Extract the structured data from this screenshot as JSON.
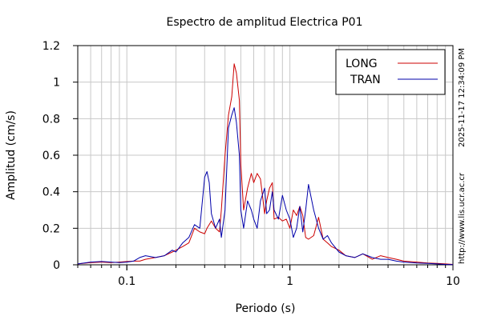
{
  "chart_data": {
    "type": "line",
    "title": "Espectro de amplitud Electrica P01",
    "xlabel": "Periodo (s)",
    "ylabel": "Amplitud (cm/s)",
    "xscale": "log",
    "xlim": [
      0.05,
      10
    ],
    "ylim": [
      0,
      1.2
    ],
    "grid": true,
    "legend_position": "top-right",
    "x_ticks": [
      {
        "value": 0.1,
        "label": "0.1"
      },
      {
        "value": 1,
        "label": "1"
      },
      {
        "value": 10,
        "label": "10"
      }
    ],
    "y_ticks": [
      {
        "value": 0,
        "label": "0"
      },
      {
        "value": 0.2,
        "label": "0.2"
      },
      {
        "value": 0.4,
        "label": "0.4"
      },
      {
        "value": 0.6,
        "label": "0.6"
      },
      {
        "value": 0.8,
        "label": "0.8"
      },
      {
        "value": 1.0,
        "label": "1"
      },
      {
        "value": 1.2,
        "label": "1.2"
      }
    ],
    "series": [
      {
        "name": "LONG",
        "color": "#cc0000",
        "x": [
          0.05,
          0.06,
          0.07,
          0.08,
          0.09,
          0.1,
          0.11,
          0.12,
          0.13,
          0.15,
          0.17,
          0.19,
          0.2,
          0.22,
          0.24,
          0.26,
          0.28,
          0.3,
          0.31,
          0.33,
          0.35,
          0.37,
          0.38,
          0.4,
          0.42,
          0.44,
          0.455,
          0.47,
          0.49,
          0.5,
          0.52,
          0.55,
          0.58,
          0.6,
          0.63,
          0.66,
          0.7,
          0.72,
          0.75,
          0.78,
          0.8,
          0.85,
          0.9,
          0.95,
          1.0,
          1.05,
          1.1,
          1.15,
          1.2,
          1.25,
          1.3,
          1.4,
          1.5,
          1.6,
          1.7,
          1.8,
          2.0,
          2.2,
          2.5,
          2.8,
          3.2,
          3.6,
          4.0,
          4.5,
          5.0,
          6.0,
          7.0,
          8.0,
          9.0,
          10.0
        ],
        "y": [
          0.005,
          0.012,
          0.015,
          0.012,
          0.015,
          0.018,
          0.02,
          0.02,
          0.03,
          0.04,
          0.05,
          0.07,
          0.08,
          0.1,
          0.12,
          0.2,
          0.18,
          0.17,
          0.2,
          0.24,
          0.2,
          0.18,
          0.3,
          0.6,
          0.82,
          0.92,
          1.1,
          1.05,
          0.9,
          0.55,
          0.3,
          0.42,
          0.5,
          0.45,
          0.5,
          0.47,
          0.28,
          0.35,
          0.42,
          0.45,
          0.25,
          0.26,
          0.24,
          0.25,
          0.2,
          0.3,
          0.27,
          0.32,
          0.27,
          0.15,
          0.14,
          0.16,
          0.26,
          0.14,
          0.12,
          0.1,
          0.08,
          0.05,
          0.04,
          0.06,
          0.03,
          0.05,
          0.04,
          0.03,
          0.02,
          0.015,
          0.01,
          0.008,
          0.005,
          0.002
        ]
      },
      {
        "name": "TRAN",
        "color": "#0000aa",
        "x": [
          0.05,
          0.06,
          0.07,
          0.08,
          0.09,
          0.1,
          0.11,
          0.12,
          0.13,
          0.15,
          0.17,
          0.19,
          0.2,
          0.22,
          0.24,
          0.26,
          0.28,
          0.3,
          0.31,
          0.32,
          0.33,
          0.35,
          0.37,
          0.38,
          0.4,
          0.42,
          0.44,
          0.455,
          0.47,
          0.49,
          0.5,
          0.52,
          0.55,
          0.58,
          0.6,
          0.63,
          0.66,
          0.7,
          0.72,
          0.75,
          0.78,
          0.8,
          0.85,
          0.9,
          0.95,
          1.0,
          1.05,
          1.1,
          1.15,
          1.2,
          1.25,
          1.3,
          1.4,
          1.5,
          1.6,
          1.7,
          1.8,
          2.0,
          2.2,
          2.5,
          2.8,
          3.2,
          3.6,
          4.0,
          4.5,
          5.0,
          6.0,
          7.0,
          8.0,
          9.0,
          10.0
        ],
        "y": [
          0.005,
          0.015,
          0.018,
          0.015,
          0.012,
          0.015,
          0.02,
          0.04,
          0.05,
          0.04,
          0.05,
          0.08,
          0.07,
          0.12,
          0.15,
          0.22,
          0.2,
          0.48,
          0.51,
          0.45,
          0.28,
          0.2,
          0.25,
          0.15,
          0.3,
          0.75,
          0.82,
          0.86,
          0.78,
          0.6,
          0.3,
          0.2,
          0.35,
          0.3,
          0.25,
          0.2,
          0.35,
          0.42,
          0.28,
          0.3,
          0.4,
          0.3,
          0.25,
          0.38,
          0.3,
          0.25,
          0.15,
          0.2,
          0.32,
          0.18,
          0.3,
          0.44,
          0.3,
          0.2,
          0.14,
          0.16,
          0.12,
          0.07,
          0.05,
          0.04,
          0.06,
          0.04,
          0.03,
          0.03,
          0.02,
          0.015,
          0.01,
          0.008,
          0.005,
          0.002,
          0.001
        ]
      }
    ]
  },
  "side_text": {
    "timestamp": "2025-11-17 12:34:09 PM",
    "url": "http://www.lis.ucr.ac.cr"
  }
}
